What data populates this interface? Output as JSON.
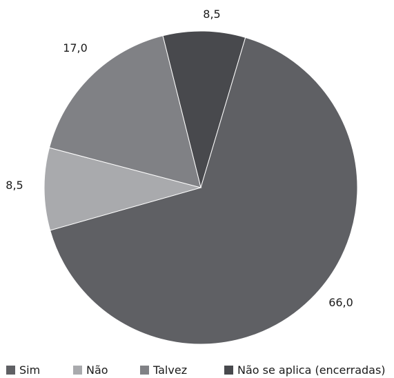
{
  "chart_data": {
    "type": "pie",
    "title": "",
    "unit": "",
    "legend_position": "bottom",
    "slices": [
      {
        "name": "Sim",
        "value": 66.0,
        "label": "66,0",
        "color": "#5f6064"
      },
      {
        "name": "Não",
        "value": 8.5,
        "label": "8,5",
        "color": "#a9aaad"
      },
      {
        "name": "Talvez",
        "value": 17.0,
        "label": "17,0",
        "color": "#808185"
      },
      {
        "name": "Não se aplica (encerradas)",
        "value": 8.5,
        "label": "8,5",
        "color": "#48494d"
      }
    ]
  }
}
